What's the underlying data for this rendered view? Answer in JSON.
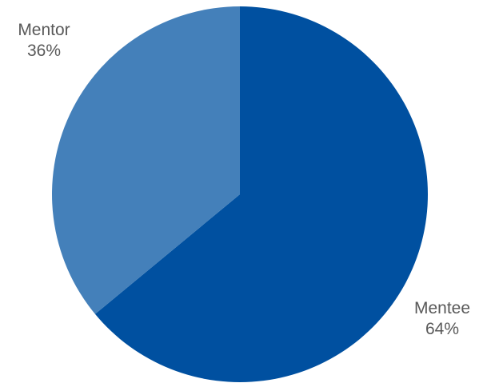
{
  "chart_data": {
    "type": "pie",
    "title": "",
    "slices": [
      {
        "label": "Mentee",
        "value": 64,
        "value_label": "64%",
        "color": "#0050A0"
      },
      {
        "label": "Mentor",
        "value": 36,
        "value_label": "36%",
        "color": "#4480BA"
      }
    ],
    "start_angle_deg": 0,
    "direction": "clockwise",
    "data_labels": "outside",
    "legend": "none",
    "label_color": "#595959"
  }
}
